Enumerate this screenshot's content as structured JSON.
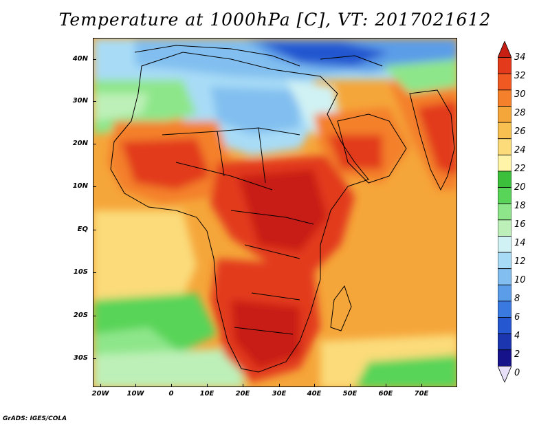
{
  "title": "Temperature at 1000hPa [C], VT: 2017021612",
  "credit": "GrADS: IGES/COLA",
  "lat_labels": [
    "40N",
    "30N",
    "20N",
    "10N",
    "EQ",
    "10S",
    "20S",
    "30S"
  ],
  "lon_labels": [
    "20W",
    "10W",
    "0",
    "10E",
    "20E",
    "30E",
    "40E",
    "50E",
    "60E",
    "70E"
  ],
  "colorbar": {
    "labels": [
      "34",
      "32",
      "30",
      "28",
      "26",
      "24",
      "22",
      "20",
      "18",
      "16",
      "14",
      "12",
      "10",
      "8",
      "6",
      "4",
      "2",
      "0"
    ],
    "colors": [
      "#e8e0f8",
      "#16128a",
      "#1c36b0",
      "#2457d0",
      "#3a7ae0",
      "#5b9de8",
      "#82bff0",
      "#a8dcf6",
      "#d0f2f4",
      "#bdf0b8",
      "#8ee68a",
      "#58d459",
      "#3cc03c",
      "#fff4a8",
      "#fbdb7a",
      "#f8c050",
      "#f5a63a",
      "#f4802c",
      "#f05a22",
      "#e23a1b",
      "#c81f15"
    ]
  },
  "map": {
    "region": "Africa, Arabia and western India",
    "lon_range": [
      -23,
      80
    ],
    "lat_range": [
      -37,
      45
    ],
    "field": "Temperature at 1000hPa",
    "units": "C"
  }
}
